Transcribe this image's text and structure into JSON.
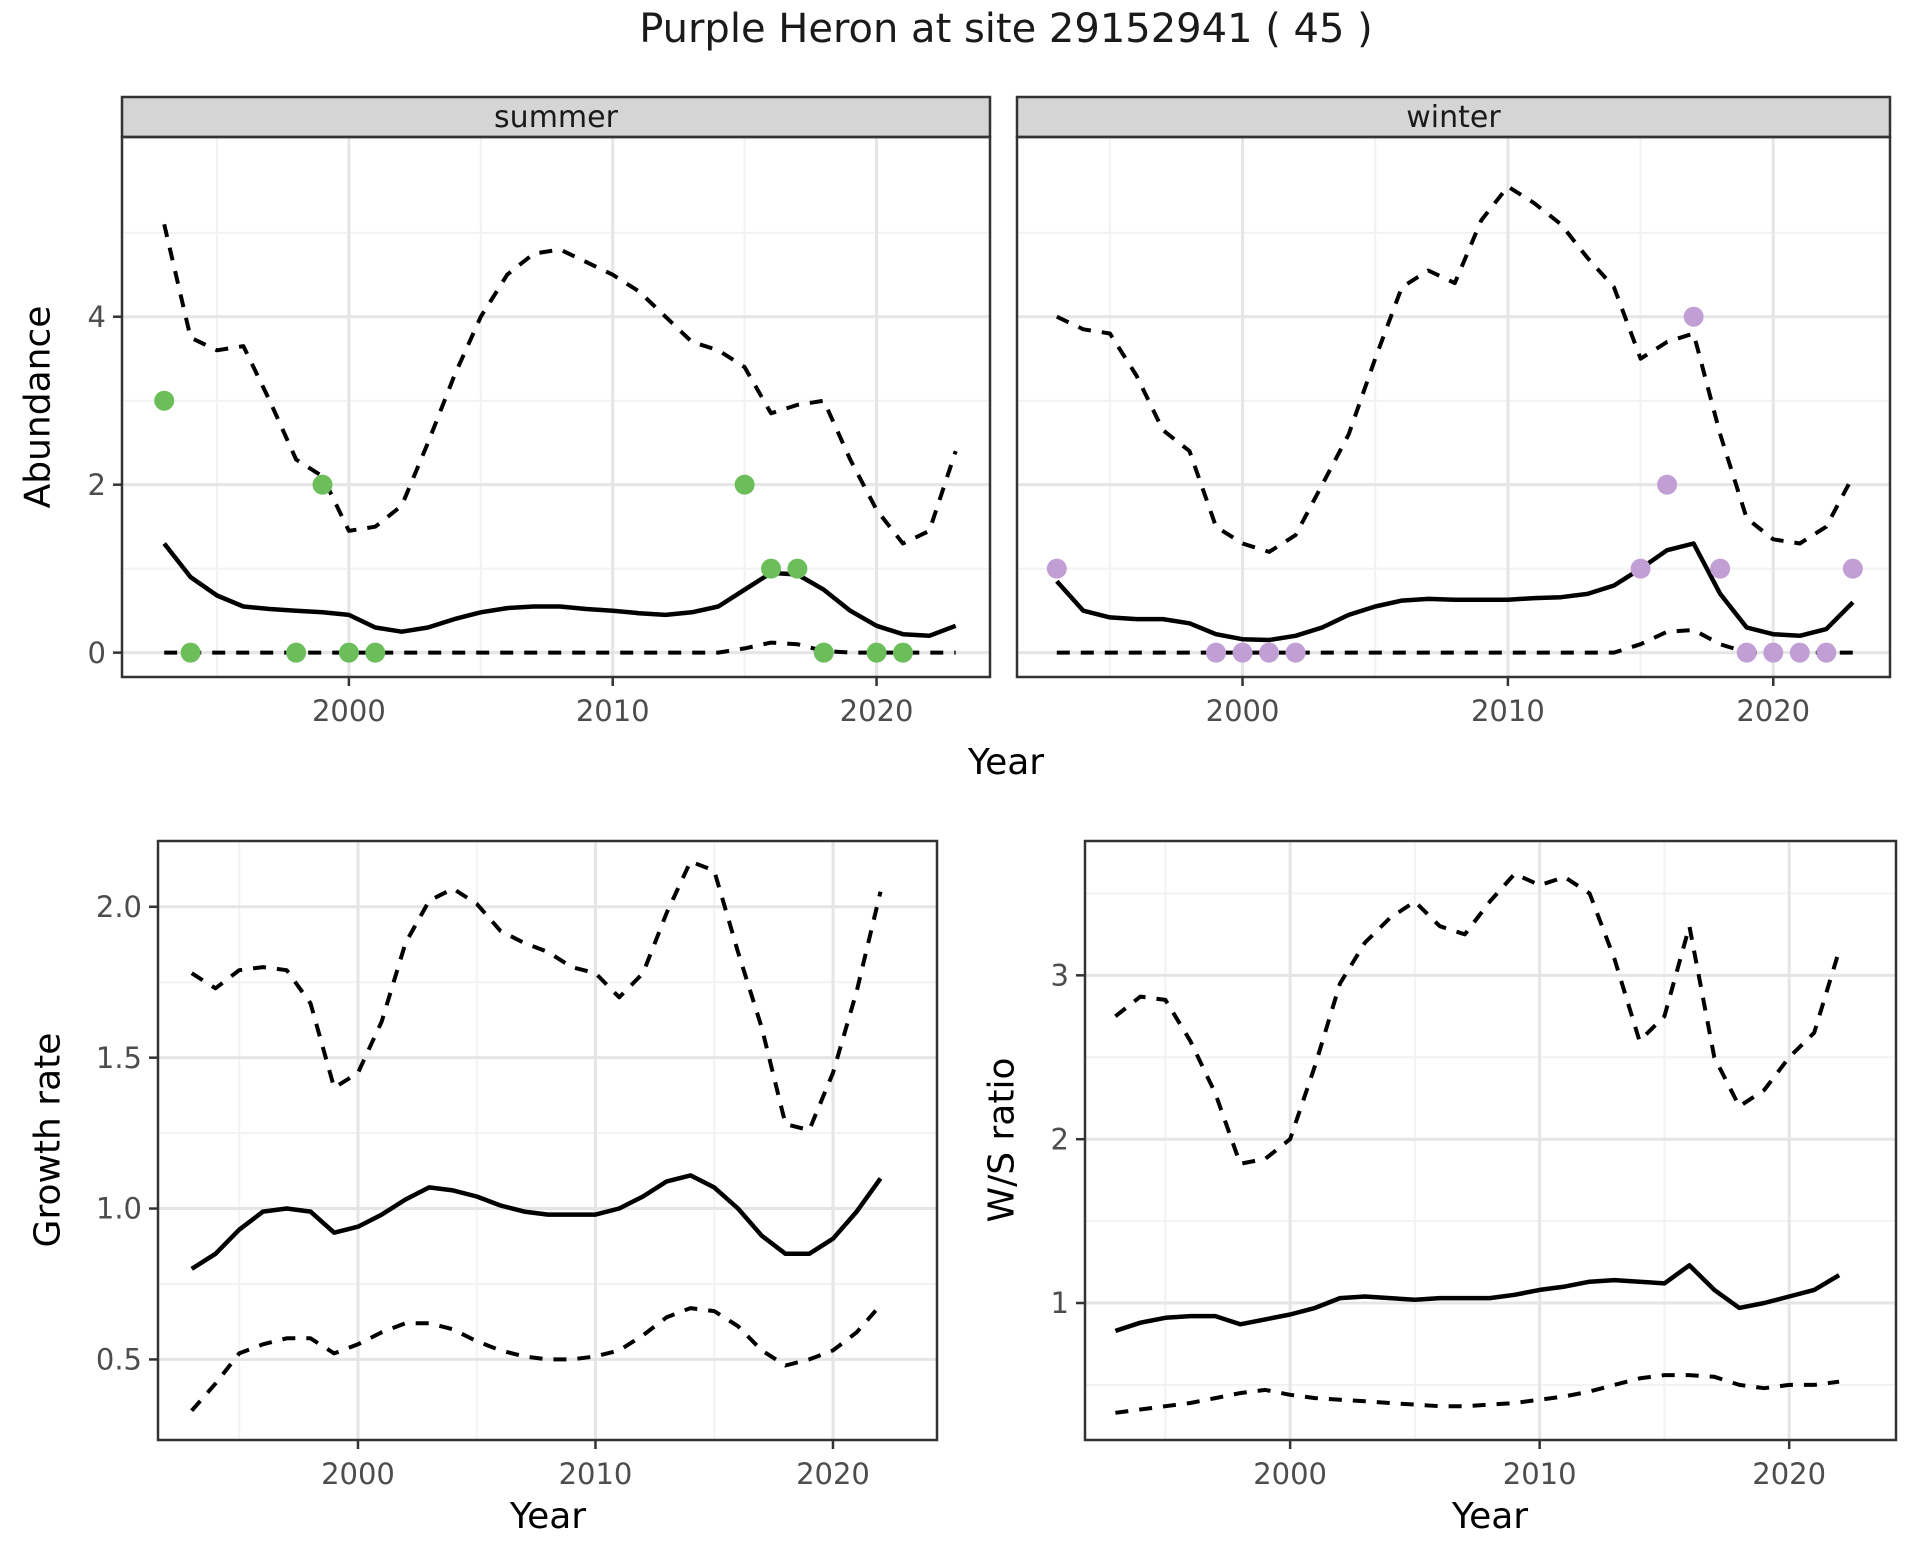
{
  "title": "Purple Heron at site 29152941 ( 45 )",
  "colors": {
    "summer_points": "#6cbe5b",
    "winter_points": "#c19fd5",
    "line": "#000000",
    "strip_bg": "#d5d5d5",
    "panel_border": "#333333",
    "grid_major": "#e5e5e5",
    "grid_minor": "#f2f2f2",
    "axis_text": "#4d4d4d",
    "tick_mark": "#333333",
    "panel_bg": "#ffffff"
  },
  "chart_data": [
    {
      "type": "line",
      "id": "summer",
      "facet_label": "summer",
      "xlabel": "Year",
      "ylabel": "Abundance",
      "x": [
        1993,
        1994,
        1995,
        1996,
        1997,
        1998,
        1999,
        2000,
        2001,
        2002,
        2003,
        2004,
        2005,
        2006,
        2007,
        2008,
        2009,
        2010,
        2011,
        2012,
        2013,
        2014,
        2015,
        2016,
        2017,
        2018,
        2019,
        2020,
        2021,
        2022,
        2023
      ],
      "xlim": [
        1991.4,
        2024.3
      ],
      "ylim": [
        -0.29,
        6.14
      ],
      "xticks": [
        2000,
        2010,
        2020
      ],
      "xtick_labels": [
        "2000",
        "2010",
        "2020"
      ],
      "x_minor": [
        1995,
        2005,
        2015
      ],
      "yticks": [
        0,
        2,
        4
      ],
      "ytick_labels": [
        "0",
        "2",
        "4"
      ],
      "y_minor": [
        1,
        3,
        5
      ],
      "grid": "on",
      "legend": "none",
      "series": [
        {
          "name": "upper_ci",
          "style": "dashed",
          "values": [
            5.1,
            3.75,
            3.6,
            3.65,
            3.0,
            2.3,
            2.1,
            1.45,
            1.5,
            1.75,
            2.5,
            3.3,
            4.0,
            4.5,
            4.75,
            4.8,
            4.65,
            4.5,
            4.3,
            4.0,
            3.7,
            3.6,
            3.4,
            2.85,
            2.95,
            3.0,
            2.3,
            1.7,
            1.3,
            1.45,
            2.4
          ]
        },
        {
          "name": "mean",
          "style": "solid",
          "values": [
            1.3,
            0.9,
            0.68,
            0.55,
            0.52,
            0.5,
            0.48,
            0.45,
            0.3,
            0.25,
            0.3,
            0.4,
            0.48,
            0.53,
            0.55,
            0.55,
            0.52,
            0.5,
            0.47,
            0.45,
            0.48,
            0.55,
            0.75,
            0.95,
            0.93,
            0.75,
            0.5,
            0.32,
            0.22,
            0.2,
            0.32
          ]
        },
        {
          "name": "lower_ci",
          "style": "dashed",
          "values": [
            0,
            0,
            0,
            0,
            0,
            0,
            0,
            0,
            0,
            0,
            0,
            0,
            0,
            0,
            0,
            0,
            0,
            0,
            0,
            0,
            0,
            0,
            0.05,
            0.12,
            0.1,
            0.02,
            0,
            0,
            0,
            0,
            0
          ]
        }
      ],
      "points": {
        "name": "observed_counts",
        "color_key": "summer_points",
        "xy": [
          [
            1993,
            3
          ],
          [
            1994,
            0
          ],
          [
            1998,
            0
          ],
          [
            1999,
            2
          ],
          [
            2000,
            0
          ],
          [
            2001,
            0
          ],
          [
            2015,
            2
          ],
          [
            2016,
            1
          ],
          [
            2017,
            1
          ],
          [
            2018,
            0
          ],
          [
            2020,
            0
          ],
          [
            2021,
            0
          ]
        ]
      }
    },
    {
      "type": "line",
      "id": "winter",
      "facet_label": "winter",
      "xlabel": "Year",
      "ylabel": "Abundance",
      "x": [
        1993,
        1994,
        1995,
        1996,
        1997,
        1998,
        1999,
        2000,
        2001,
        2002,
        2003,
        2004,
        2005,
        2006,
        2007,
        2008,
        2009,
        2010,
        2011,
        2012,
        2013,
        2014,
        2015,
        2016,
        2017,
        2018,
        2019,
        2020,
        2021,
        2022,
        2023
      ],
      "xlim": [
        1991.5,
        2024.4
      ],
      "ylim": [
        -0.29,
        6.14
      ],
      "xticks": [
        2000,
        2010,
        2020
      ],
      "xtick_labels": [
        "2000",
        "2010",
        "2020"
      ],
      "x_minor": [
        1995,
        2005,
        2015
      ],
      "yticks": [
        0,
        2,
        4
      ],
      "ytick_labels": [
        "0",
        "2",
        "4"
      ],
      "y_minor": [
        1,
        3,
        5
      ],
      "grid": "on",
      "legend": "none",
      "series": [
        {
          "name": "upper_ci",
          "style": "dashed",
          "values": [
            4.0,
            3.85,
            3.8,
            3.3,
            2.65,
            2.4,
            1.5,
            1.3,
            1.2,
            1.4,
            2.0,
            2.6,
            3.5,
            4.35,
            4.55,
            4.4,
            5.15,
            5.55,
            5.35,
            5.1,
            4.7,
            4.35,
            3.5,
            3.7,
            3.8,
            2.6,
            1.6,
            1.35,
            1.3,
            1.5,
            2.1
          ]
        },
        {
          "name": "mean",
          "style": "solid",
          "values": [
            0.85,
            0.5,
            0.42,
            0.4,
            0.4,
            0.35,
            0.22,
            0.16,
            0.15,
            0.2,
            0.3,
            0.45,
            0.55,
            0.62,
            0.64,
            0.63,
            0.63,
            0.63,
            0.65,
            0.66,
            0.7,
            0.8,
            1.0,
            1.22,
            1.3,
            0.7,
            0.3,
            0.22,
            0.2,
            0.28,
            0.6
          ]
        },
        {
          "name": "lower_ci",
          "style": "dashed",
          "values": [
            0,
            0,
            0,
            0,
            0,
            0,
            0,
            0,
            0,
            0,
            0,
            0,
            0,
            0,
            0,
            0,
            0,
            0,
            0,
            0,
            0,
            0,
            0.1,
            0.25,
            0.27,
            0.1,
            0,
            0,
            0,
            0,
            0
          ]
        }
      ],
      "points": {
        "name": "observed_counts",
        "color_key": "winter_points",
        "xy": [
          [
            1993,
            1
          ],
          [
            1999,
            0
          ],
          [
            2000,
            0
          ],
          [
            2001,
            0
          ],
          [
            2002,
            0
          ],
          [
            2015,
            1
          ],
          [
            2016,
            2
          ],
          [
            2017,
            4
          ],
          [
            2018,
            1
          ],
          [
            2019,
            0
          ],
          [
            2020,
            0
          ],
          [
            2021,
            0
          ],
          [
            2022,
            0
          ],
          [
            2023,
            1
          ]
        ]
      }
    },
    {
      "type": "line",
      "id": "growth",
      "facet_label": "",
      "xlabel": "Year",
      "ylabel": "Growth rate",
      "x": [
        1993,
        1994,
        1995,
        1996,
        1997,
        1998,
        1999,
        2000,
        2001,
        2002,
        2003,
        2004,
        2005,
        2006,
        2007,
        2008,
        2009,
        2010,
        2011,
        2012,
        2013,
        2014,
        2015,
        2016,
        2017,
        2018,
        2019,
        2020,
        2021,
        2022
      ],
      "xlim": [
        1991.58,
        2024.38
      ],
      "ylim": [
        0.233,
        2.218
      ],
      "xticks": [
        2000,
        2010,
        2020
      ],
      "xtick_labels": [
        "2000",
        "2010",
        "2020"
      ],
      "x_minor": [
        1995,
        2005,
        2015
      ],
      "yticks": [
        0.5,
        1.0,
        1.5,
        2.0
      ],
      "ytick_labels": [
        "0.5",
        "1.0",
        "1.5",
        "2.0"
      ],
      "y_minor": [
        0.75,
        1.25,
        1.75
      ],
      "grid": "on",
      "legend": "none",
      "series": [
        {
          "name": "upper_ci",
          "style": "dashed",
          "values": [
            1.78,
            1.73,
            1.79,
            1.8,
            1.79,
            1.68,
            1.4,
            1.45,
            1.62,
            1.88,
            2.02,
            2.06,
            2.01,
            1.92,
            1.88,
            1.85,
            1.8,
            1.78,
            1.7,
            1.78,
            1.98,
            2.15,
            2.12,
            1.85,
            1.6,
            1.28,
            1.26,
            1.45,
            1.72,
            2.05
          ]
        },
        {
          "name": "mean",
          "style": "solid",
          "values": [
            0.8,
            0.85,
            0.93,
            0.99,
            1.0,
            0.99,
            0.92,
            0.94,
            0.98,
            1.03,
            1.07,
            1.06,
            1.04,
            1.01,
            0.99,
            0.98,
            0.98,
            0.98,
            1.0,
            1.04,
            1.09,
            1.11,
            1.07,
            1.0,
            0.91,
            0.85,
            0.85,
            0.9,
            0.99,
            1.1
          ]
        },
        {
          "name": "lower_ci",
          "style": "dashed",
          "values": [
            0.33,
            0.42,
            0.52,
            0.55,
            0.57,
            0.57,
            0.52,
            0.55,
            0.59,
            0.62,
            0.62,
            0.6,
            0.56,
            0.53,
            0.51,
            0.5,
            0.5,
            0.51,
            0.53,
            0.58,
            0.64,
            0.67,
            0.66,
            0.61,
            0.53,
            0.48,
            0.5,
            0.53,
            0.59,
            0.68
          ]
        }
      ],
      "points": null
    },
    {
      "type": "line",
      "id": "ws",
      "facet_label": "",
      "xlabel": "Year",
      "ylabel": "W/S ratio",
      "x": [
        1993,
        1994,
        1995,
        1996,
        1997,
        1998,
        1999,
        2000,
        2001,
        2002,
        2003,
        2004,
        2005,
        2006,
        2007,
        2008,
        2009,
        2010,
        2011,
        2012,
        2013,
        2014,
        2015,
        2016,
        2017,
        2018,
        2019,
        2020,
        2021,
        2022
      ],
      "xlim": [
        1991.78,
        2024.28
      ],
      "ylim": [
        0.164,
        3.82
      ],
      "xticks": [
        2000,
        2010,
        2020
      ],
      "xtick_labels": [
        "2000",
        "2010",
        "2020"
      ],
      "x_minor": [
        1995,
        2005,
        2015
      ],
      "yticks": [
        1,
        2,
        3
      ],
      "ytick_labels": [
        "1",
        "2",
        "3"
      ],
      "y_minor": [
        0.5,
        1.5,
        2.5,
        3.5
      ],
      "grid": "on",
      "legend": "none",
      "series": [
        {
          "name": "upper_ci",
          "style": "dashed",
          "values": [
            2.75,
            2.87,
            2.85,
            2.6,
            2.28,
            1.85,
            1.88,
            2.0,
            2.45,
            2.95,
            3.2,
            3.35,
            3.45,
            3.3,
            3.25,
            3.45,
            3.62,
            3.55,
            3.6,
            3.5,
            3.1,
            2.6,
            2.75,
            3.3,
            2.5,
            2.2,
            2.3,
            2.5,
            2.65,
            3.15
          ]
        },
        {
          "name": "mean",
          "style": "solid",
          "values": [
            0.83,
            0.88,
            0.91,
            0.92,
            0.92,
            0.87,
            0.9,
            0.93,
            0.97,
            1.03,
            1.04,
            1.03,
            1.02,
            1.03,
            1.03,
            1.03,
            1.05,
            1.08,
            1.1,
            1.13,
            1.14,
            1.13,
            1.12,
            1.23,
            1.08,
            0.97,
            1.0,
            1.04,
            1.08,
            1.17
          ]
        },
        {
          "name": "lower_ci",
          "style": "dashed",
          "values": [
            0.33,
            0.35,
            0.37,
            0.39,
            0.42,
            0.45,
            0.47,
            0.44,
            0.42,
            0.41,
            0.4,
            0.39,
            0.38,
            0.37,
            0.37,
            0.38,
            0.39,
            0.41,
            0.43,
            0.46,
            0.5,
            0.54,
            0.56,
            0.56,
            0.55,
            0.5,
            0.48,
            0.5,
            0.5,
            0.52
          ]
        }
      ],
      "points": null
    }
  ]
}
